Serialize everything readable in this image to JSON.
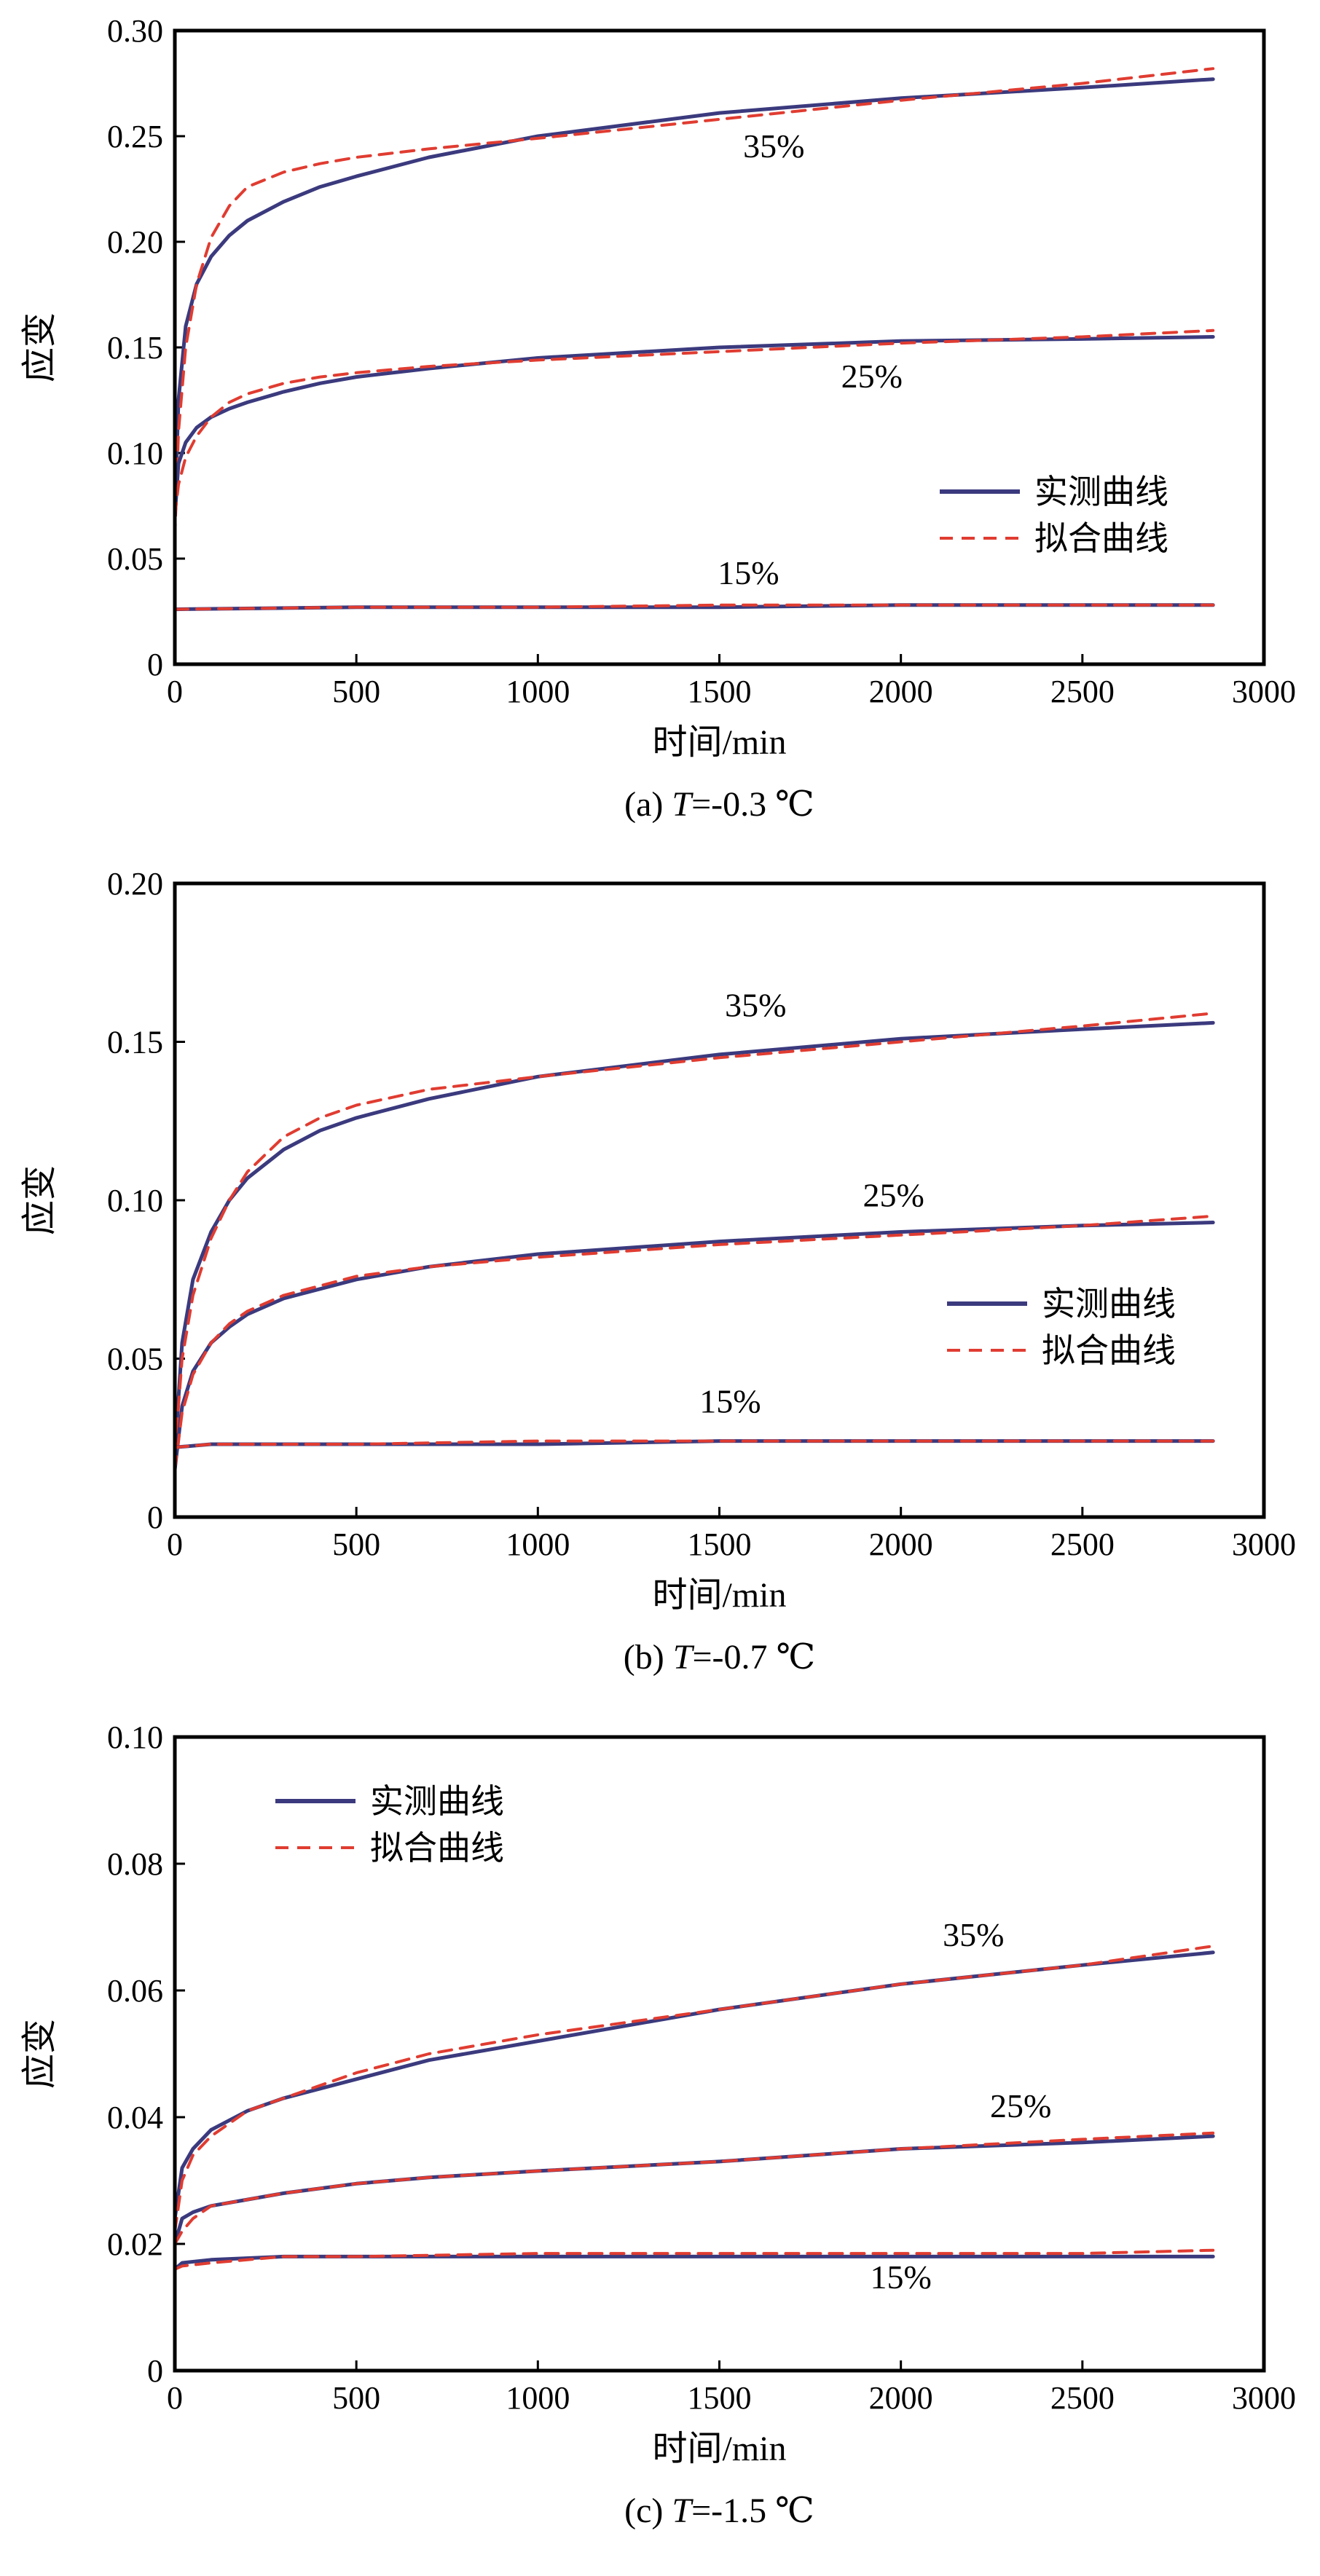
{
  "chart_data": [
    {
      "type": "line",
      "caption_prefix": "(a) ",
      "caption_var": "T",
      "caption_suffix": "=-0.3 ℃",
      "xlabel": "时间/min",
      "ylabel": "应变",
      "xlim": [
        0,
        3000
      ],
      "ylim": [
        0,
        0.3
      ],
      "xticks": [
        0,
        500,
        1000,
        1500,
        2000,
        2500,
        3000
      ],
      "xtick_labels": [
        "0",
        "500",
        "1000",
        "1500",
        "2000",
        "2500",
        "3000"
      ],
      "yticks": [
        0,
        0.05,
        0.1,
        0.15,
        0.2,
        0.25,
        0.3
      ],
      "ytick_labels": [
        "0",
        "0.05",
        "0.10",
        "0.15",
        "0.20",
        "0.25",
        "0.30"
      ],
      "grid": false,
      "legend": {
        "placement": "right",
        "entries": [
          {
            "label": "实测曲线",
            "style": "solid",
            "color": "#3b3a7e"
          },
          {
            "label": "拟合曲线",
            "style": "dashed",
            "color": "#e03c31"
          }
        ]
      },
      "annotations": [
        {
          "text": "35%",
          "x": 1650,
          "y": 0.24
        },
        {
          "text": "25%",
          "x": 1920,
          "y": 0.131
        },
        {
          "text": "15%",
          "x": 1580,
          "y": 0.038
        }
      ],
      "series": [
        {
          "name": "实测曲线",
          "group": "35%",
          "x": [
            0,
            10,
            30,
            60,
            100,
            150,
            200,
            300,
            400,
            500,
            700,
            1000,
            1500,
            2000,
            2500,
            2860
          ],
          "y": [
            0.07,
            0.125,
            0.16,
            0.18,
            0.193,
            0.203,
            0.21,
            0.219,
            0.226,
            0.231,
            0.24,
            0.25,
            0.261,
            0.268,
            0.273,
            0.277
          ]
        },
        {
          "name": "拟合曲线",
          "group": "35%",
          "x": [
            0,
            10,
            30,
            60,
            100,
            150,
            200,
            300,
            400,
            500,
            700,
            1000,
            1500,
            2000,
            2500,
            2860
          ],
          "y": [
            0.06,
            0.11,
            0.15,
            0.18,
            0.202,
            0.217,
            0.226,
            0.233,
            0.237,
            0.24,
            0.244,
            0.249,
            0.258,
            0.267,
            0.275,
            0.282
          ]
        },
        {
          "name": "实测曲线",
          "group": "25%",
          "x": [
            0,
            10,
            30,
            60,
            100,
            150,
            200,
            300,
            400,
            500,
            700,
            1000,
            1500,
            2000,
            2500,
            2860
          ],
          "y": [
            0.07,
            0.095,
            0.105,
            0.112,
            0.117,
            0.121,
            0.124,
            0.129,
            0.133,
            0.136,
            0.14,
            0.145,
            0.15,
            0.153,
            0.154,
            0.155
          ]
        },
        {
          "name": "拟合曲线",
          "group": "25%",
          "x": [
            0,
            10,
            30,
            60,
            100,
            150,
            200,
            300,
            400,
            500,
            700,
            1000,
            1500,
            2000,
            2500,
            2860
          ],
          "y": [
            0.07,
            0.085,
            0.098,
            0.108,
            0.117,
            0.124,
            0.128,
            0.133,
            0.136,
            0.138,
            0.141,
            0.144,
            0.148,
            0.152,
            0.155,
            0.158
          ]
        },
        {
          "name": "实测曲线",
          "group": "15%",
          "x": [
            0,
            500,
            1000,
            1500,
            2000,
            2500,
            2860
          ],
          "y": [
            0.026,
            0.027,
            0.027,
            0.027,
            0.028,
            0.028,
            0.028
          ]
        },
        {
          "name": "拟合曲线",
          "group": "15%",
          "x": [
            0,
            500,
            1000,
            1500,
            2000,
            2500,
            2860
          ],
          "y": [
            0.026,
            0.027,
            0.027,
            0.028,
            0.028,
            0.028,
            0.028
          ]
        }
      ]
    },
    {
      "type": "line",
      "caption_prefix": "(b) ",
      "caption_var": "T",
      "caption_suffix": "=-0.7 ℃",
      "xlabel": "时间/min",
      "ylabel": "应变",
      "xlim": [
        0,
        3000
      ],
      "ylim": [
        0,
        0.2
      ],
      "xticks": [
        0,
        500,
        1000,
        1500,
        2000,
        2500,
        3000
      ],
      "xtick_labels": [
        "0",
        "500",
        "1000",
        "1500",
        "2000",
        "2500",
        "3000"
      ],
      "yticks": [
        0,
        0.05,
        0.1,
        0.15,
        0.2
      ],
      "ytick_labels": [
        "0",
        "0.05",
        "0.10",
        "0.15",
        "0.20"
      ],
      "grid": false,
      "legend": {
        "placement": "right",
        "entries": [
          {
            "label": "实测曲线",
            "style": "solid",
            "color": "#3b3a7e"
          },
          {
            "label": "拟合曲线",
            "style": "dashed",
            "color": "#e03c31"
          }
        ]
      },
      "annotations": [
        {
          "text": "35%",
          "x": 1600,
          "y": 0.158
        },
        {
          "text": "25%",
          "x": 1980,
          "y": 0.098
        },
        {
          "text": "15%",
          "x": 1530,
          "y": 0.033
        }
      ],
      "series": [
        {
          "name": "实测曲线",
          "group": "35%",
          "x": [
            0,
            20,
            50,
            100,
            150,
            200,
            300,
            400,
            500,
            700,
            1000,
            1500,
            2000,
            2500,
            2860
          ],
          "y": [
            0.02,
            0.055,
            0.075,
            0.09,
            0.1,
            0.107,
            0.116,
            0.122,
            0.126,
            0.132,
            0.139,
            0.146,
            0.151,
            0.154,
            0.156
          ]
        },
        {
          "name": "拟合曲线",
          "group": "35%",
          "x": [
            0,
            20,
            50,
            100,
            150,
            200,
            300,
            400,
            500,
            700,
            1000,
            1500,
            2000,
            2500,
            2860
          ],
          "y": [
            0.02,
            0.05,
            0.07,
            0.088,
            0.1,
            0.109,
            0.12,
            0.126,
            0.13,
            0.135,
            0.139,
            0.145,
            0.15,
            0.155,
            0.159
          ]
        },
        {
          "name": "实测曲线",
          "group": "25%",
          "x": [
            0,
            20,
            50,
            100,
            150,
            200,
            300,
            400,
            500,
            700,
            1000,
            1500,
            2000,
            2500,
            2860
          ],
          "y": [
            0.015,
            0.035,
            0.046,
            0.055,
            0.06,
            0.064,
            0.069,
            0.072,
            0.075,
            0.079,
            0.083,
            0.087,
            0.09,
            0.092,
            0.093
          ]
        },
        {
          "name": "拟合曲线",
          "group": "25%",
          "x": [
            0,
            20,
            50,
            100,
            150,
            200,
            300,
            400,
            500,
            700,
            1000,
            1500,
            2000,
            2500,
            2860
          ],
          "y": [
            0.015,
            0.033,
            0.045,
            0.055,
            0.061,
            0.065,
            0.07,
            0.073,
            0.076,
            0.079,
            0.082,
            0.086,
            0.089,
            0.092,
            0.095
          ]
        },
        {
          "name": "实测曲线",
          "group": "15%",
          "x": [
            0,
            100,
            500,
            1000,
            1500,
            2000,
            2500,
            2860
          ],
          "y": [
            0.022,
            0.023,
            0.023,
            0.023,
            0.024,
            0.024,
            0.024,
            0.024
          ]
        },
        {
          "name": "拟合曲线",
          "group": "15%",
          "x": [
            0,
            100,
            500,
            1000,
            1500,
            2000,
            2500,
            2860
          ],
          "y": [
            0.022,
            0.023,
            0.023,
            0.024,
            0.024,
            0.024,
            0.024,
            0.024
          ]
        }
      ]
    },
    {
      "type": "line",
      "caption_prefix": "(c) ",
      "caption_var": "T",
      "caption_suffix": "=-1.5 ℃",
      "xlabel": "时间/min",
      "ylabel": "应变",
      "xlim": [
        0,
        3000
      ],
      "ylim": [
        0,
        0.1
      ],
      "xticks": [
        0,
        500,
        1000,
        1500,
        2000,
        2500,
        3000
      ],
      "xtick_labels": [
        "0",
        "500",
        "1000",
        "1500",
        "2000",
        "2500",
        "3000"
      ],
      "yticks": [
        0,
        0.02,
        0.04,
        0.06,
        0.08,
        0.1
      ],
      "ytick_labels": [
        "0",
        "0.02",
        "0.04",
        "0.06",
        "0.08",
        "0.10"
      ],
      "grid": false,
      "legend": {
        "placement": "top-left",
        "entries": [
          {
            "label": "实测曲线",
            "style": "solid",
            "color": "#3b3a7e"
          },
          {
            "label": "拟合曲线",
            "style": "dashed",
            "color": "#e03c31"
          }
        ]
      },
      "annotations": [
        {
          "text": "35%",
          "x": 2200,
          "y": 0.067
        },
        {
          "text": "25%",
          "x": 2330,
          "y": 0.04
        },
        {
          "text": "15%",
          "x": 2000,
          "y": 0.013
        }
      ],
      "series": [
        {
          "name": "实测曲线",
          "group": "35%",
          "x": [
            0,
            20,
            50,
            100,
            200,
            300,
            500,
            700,
            1000,
            1500,
            2000,
            2500,
            2860
          ],
          "y": [
            0.024,
            0.032,
            0.035,
            0.038,
            0.041,
            0.043,
            0.046,
            0.049,
            0.052,
            0.057,
            0.061,
            0.064,
            0.066
          ]
        },
        {
          "name": "拟合曲线",
          "group": "35%",
          "x": [
            0,
            20,
            50,
            100,
            200,
            300,
            500,
            700,
            1000,
            1500,
            2000,
            2500,
            2860
          ],
          "y": [
            0.022,
            0.03,
            0.034,
            0.037,
            0.041,
            0.043,
            0.047,
            0.05,
            0.053,
            0.057,
            0.061,
            0.064,
            0.067
          ]
        },
        {
          "name": "实测曲线",
          "group": "25%",
          "x": [
            0,
            20,
            50,
            100,
            200,
            300,
            500,
            700,
            1000,
            1500,
            2000,
            2500,
            2860
          ],
          "y": [
            0.02,
            0.024,
            0.025,
            0.026,
            0.027,
            0.028,
            0.0295,
            0.0305,
            0.0315,
            0.033,
            0.035,
            0.036,
            0.037
          ]
        },
        {
          "name": "拟合曲线",
          "group": "25%",
          "x": [
            0,
            20,
            50,
            100,
            200,
            300,
            500,
            700,
            1000,
            1500,
            2000,
            2500,
            2860
          ],
          "y": [
            0.02,
            0.022,
            0.024,
            0.026,
            0.027,
            0.028,
            0.0295,
            0.0305,
            0.0315,
            0.033,
            0.035,
            0.0365,
            0.0375
          ]
        },
        {
          "name": "实测曲线",
          "group": "15%",
          "x": [
            0,
            20,
            100,
            300,
            500,
            1000,
            1500,
            2000,
            2500,
            2860
          ],
          "y": [
            0.016,
            0.017,
            0.0175,
            0.018,
            0.018,
            0.018,
            0.018,
            0.018,
            0.018,
            0.018
          ]
        },
        {
          "name": "拟合曲线",
          "group": "15%",
          "x": [
            0,
            20,
            100,
            300,
            500,
            1000,
            1500,
            2000,
            2500,
            2860
          ],
          "y": [
            0.016,
            0.0165,
            0.017,
            0.018,
            0.018,
            0.0185,
            0.0185,
            0.0185,
            0.0185,
            0.019
          ]
        }
      ]
    }
  ]
}
